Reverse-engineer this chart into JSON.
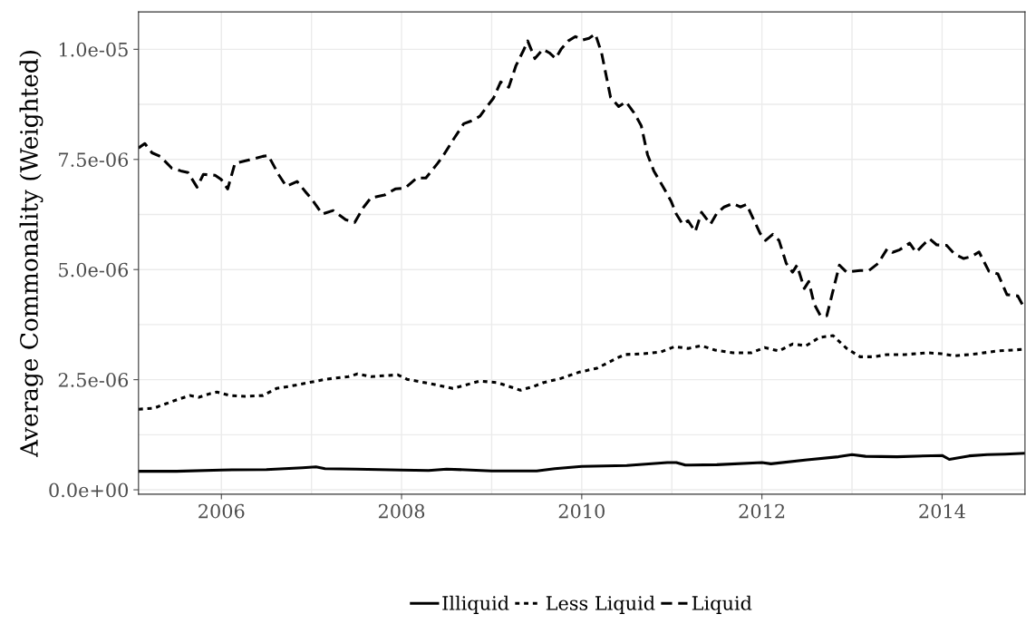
{
  "chart_data": {
    "type": "line",
    "ylabel": "Average Commonality (Weighted)",
    "legend": "bottom",
    "grid": true,
    "xlim": [
      2005.08,
      2014.92
    ],
    "xticks": [
      2006,
      {
        "value": 2007,
        "label": null
      },
      2008,
      {
        "value": 2009,
        "label": null
      },
      2010,
      {
        "value": 2011,
        "label": null
      },
      2012,
      {
        "value": 2013,
        "label": null
      },
      2014
    ],
    "ylim": [
      -1e-07,
      1.085e-05
    ],
    "yticks": [
      {
        "value": 0,
        "label": "0.0e+00"
      },
      {
        "value": 1.25e-06,
        "label": null
      },
      {
        "value": 2.5e-06,
        "label": "2.5e-06"
      },
      {
        "value": 3.75e-06,
        "label": null
      },
      {
        "value": 5e-06,
        "label": "5.0e-06"
      },
      {
        "value": 6.25e-06,
        "label": null
      },
      {
        "value": 7.5e-06,
        "label": "7.5e-06"
      },
      {
        "value": 8.75e-06,
        "label": null
      },
      {
        "value": 1e-05,
        "label": "1.0e-05"
      }
    ],
    "series": [
      {
        "name": "Illiquid",
        "color": "#000000",
        "line_style": "solid",
        "x": [
          2005.08,
          2005.5,
          2006.0,
          2006.5,
          2006.9,
          2007.05,
          2007.15,
          2007.5,
          2008.0,
          2008.3,
          2008.5,
          2009.0,
          2009.5,
          2009.7,
          2010.0,
          2010.5,
          2010.95,
          2011.05,
          2011.15,
          2011.5,
          2012.0,
          2012.1,
          2012.5,
          2012.85,
          2013.0,
          2013.15,
          2013.5,
          2014.0,
          2014.08,
          2014.3,
          2014.5,
          2014.7,
          2014.92
        ],
        "values": [
          4.2e-07,
          4.2e-07,
          4.5e-07,
          4.6e-07,
          5e-07,
          5.2e-07,
          4.8e-07,
          4.7e-07,
          4.5e-07,
          4.4e-07,
          4.7e-07,
          4.3e-07,
          4.3e-07,
          4.8e-07,
          5.3e-07,
          5.5e-07,
          6.2e-07,
          6.2e-07,
          5.6e-07,
          5.7e-07,
          6.2e-07,
          5.9e-07,
          6.8e-07,
          7.5e-07,
          8e-07,
          7.6e-07,
          7.5e-07,
          7.8e-07,
          6.9e-07,
          7.7e-07,
          8e-07,
          8.1e-07,
          8.3e-07
        ]
      },
      {
        "name": "Less Liquid",
        "color": "#000000",
        "line_style": "dotted",
        "x": [
          2005.08,
          2005.25,
          2005.35,
          2005.5,
          2005.65,
          2005.75,
          2005.87,
          2005.95,
          2006.1,
          2006.26,
          2006.46,
          2006.61,
          2006.76,
          2006.96,
          2007.16,
          2007.41,
          2007.51,
          2007.66,
          2007.96,
          2008.06,
          2008.37,
          2008.57,
          2008.87,
          2009.07,
          2009.32,
          2009.47,
          2009.57,
          2009.77,
          2009.97,
          2010.17,
          2010.38,
          2010.48,
          2010.68,
          2010.88,
          2011.03,
          2011.18,
          2011.33,
          2011.48,
          2011.68,
          2011.88,
          2012.03,
          2012.19,
          2012.34,
          2012.49,
          2012.64,
          2012.79,
          2012.94,
          2013.09,
          2013.24,
          2013.39,
          2013.59,
          2013.84,
          2013.99,
          2014.14,
          2014.4,
          2014.6,
          2014.92
        ],
        "values": [
          1.83e-06,
          1.85e-06,
          1.93e-06,
          2.04e-06,
          2.14e-06,
          2.1e-06,
          2.18e-06,
          2.22e-06,
          2.14e-06,
          2.12e-06,
          2.14e-06,
          2.3e-06,
          2.35e-06,
          2.43e-06,
          2.51e-06,
          2.57e-06,
          2.63e-06,
          2.57e-06,
          2.61e-06,
          2.51e-06,
          2.39e-06,
          2.3e-06,
          2.47e-06,
          2.43e-06,
          2.26e-06,
          2.35e-06,
          2.43e-06,
          2.53e-06,
          2.67e-06,
          2.76e-06,
          2.98e-06,
          3.07e-06,
          3.09e-06,
          3.13e-06,
          3.25e-06,
          3.21e-06,
          3.27e-06,
          3.17e-06,
          3.11e-06,
          3.11e-06,
          3.23e-06,
          3.15e-06,
          3.31e-06,
          3.27e-06,
          3.46e-06,
          3.5e-06,
          3.21e-06,
          3.02e-06,
          3.02e-06,
          3.07e-06,
          3.07e-06,
          3.11e-06,
          3.09e-06,
          3.04e-06,
          3.09e-06,
          3.15e-06,
          3.19e-06
        ]
      },
      {
        "name": "Liquid",
        "color": "#000000",
        "line_style": "dashed",
        "x": [
          2005.08,
          2005.15,
          2005.23,
          2005.32,
          2005.45,
          2005.55,
          2005.63,
          2005.73,
          2005.8,
          2005.93,
          2006.0,
          2006.07,
          2006.15,
          2006.31,
          2006.46,
          2006.52,
          2006.64,
          2006.72,
          2006.84,
          2006.94,
          2007.01,
          2007.12,
          2007.24,
          2007.38,
          2007.48,
          2007.58,
          2007.66,
          2007.81,
          2007.93,
          2008.04,
          2008.17,
          2008.27,
          2008.4,
          2008.47,
          2008.59,
          2008.69,
          2008.77,
          2008.87,
          2008.94,
          2009.02,
          2009.1,
          2009.19,
          2009.27,
          2009.35,
          2009.4,
          2009.48,
          2009.57,
          2009.64,
          2009.71,
          2009.77,
          2009.85,
          2009.93,
          2010.01,
          2010.08,
          2010.15,
          2010.22,
          2010.32,
          2010.41,
          2010.49,
          2010.58,
          2010.66,
          2010.73,
          2010.8,
          2010.9,
          2010.99,
          2011.05,
          2011.12,
          2011.18,
          2011.26,
          2011.33,
          2011.43,
          2011.5,
          2011.58,
          2011.68,
          2011.76,
          2011.83,
          2011.9,
          2011.98,
          2012.04,
          2012.12,
          2012.19,
          2012.27,
          2012.34,
          2012.39,
          2012.47,
          2012.52,
          2012.58,
          2012.65,
          2012.72,
          2012.86,
          2012.94,
          2013.09,
          2013.19,
          2013.29,
          2013.39,
          2013.45,
          2013.53,
          2013.64,
          2013.71,
          2013.79,
          2013.86,
          2013.94,
          2014.05,
          2014.14,
          2014.24,
          2014.33,
          2014.41,
          2014.52,
          2014.62,
          2014.72,
          2014.84,
          2014.92
        ],
        "values": [
          7.76e-06,
          7.86e-06,
          7.65e-06,
          7.57e-06,
          7.3e-06,
          7.24e-06,
          7.2e-06,
          6.87e-06,
          7.16e-06,
          7.14e-06,
          7.04e-06,
          6.83e-06,
          7.41e-06,
          7.49e-06,
          7.57e-06,
          7.59e-06,
          7.14e-06,
          6.89e-06,
          7e-06,
          6.75e-06,
          6.58e-06,
          6.26e-06,
          6.34e-06,
          6.13e-06,
          6.07e-06,
          6.42e-06,
          6.63e-06,
          6.69e-06,
          6.83e-06,
          6.85e-06,
          7.08e-06,
          7.08e-06,
          7.41e-06,
          7.61e-06,
          8e-06,
          8.31e-06,
          8.37e-06,
          8.48e-06,
          8.68e-06,
          8.89e-06,
          9.26e-06,
          9.14e-06,
          9.63e-06,
          9.96e-06,
          1.019e-05,
          9.79e-06,
          1e-05,
          9.92e-06,
          9.79e-06,
          1e-05,
          1.019e-05,
          1.029e-05,
          1.021e-05,
          1.025e-05,
          1.035e-05,
          9.92e-06,
          8.91e-06,
          8.7e-06,
          8.81e-06,
          8.56e-06,
          8.27e-06,
          7.61e-06,
          7.24e-06,
          6.89e-06,
          6.56e-06,
          6.26e-06,
          6.03e-06,
          6.11e-06,
          5.86e-06,
          6.3e-06,
          6.03e-06,
          6.28e-06,
          6.42e-06,
          6.5e-06,
          6.42e-06,
          6.48e-06,
          6.17e-06,
          5.82e-06,
          5.66e-06,
          5.8e-06,
          5.66e-06,
          5.14e-06,
          4.94e-06,
          5.1e-06,
          4.57e-06,
          4.73e-06,
          4.22e-06,
          3.95e-06,
          3.95e-06,
          5.1e-06,
          4.94e-06,
          4.98e-06,
          4.98e-06,
          5.14e-06,
          5.47e-06,
          5.39e-06,
          5.45e-06,
          5.6e-06,
          5.39e-06,
          5.56e-06,
          5.7e-06,
          5.56e-06,
          5.55e-06,
          5.35e-06,
          5.25e-06,
          5.3e-06,
          5.4e-06,
          4.96e-06,
          4.9e-06,
          4.43e-06,
          4.4e-06,
          4.1e-06
        ]
      }
    ]
  }
}
